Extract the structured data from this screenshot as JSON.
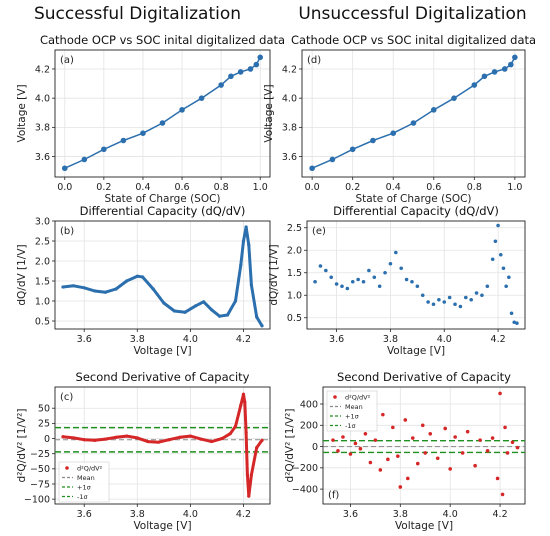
{
  "headings": {
    "left": "Successful Digitalization",
    "right": "Unsuccessful Digitalization"
  },
  "chart_data": [
    {
      "id": "a",
      "type": "scatter",
      "panel_label": "(a)",
      "title": "Cathode OCP vs SOC inital digitalized data",
      "xlabel": "State of Charge (SOC)",
      "ylabel": "Voltage [V]",
      "xlim": [
        -0.05,
        1.05
      ],
      "ylim": [
        3.46,
        4.33
      ],
      "xticks": [
        "0.0",
        "0.2",
        "0.4",
        "0.6",
        "0.8",
        "1.0"
      ],
      "xtick_values": [
        0,
        0.2,
        0.4,
        0.6,
        0.8,
        1.0
      ],
      "yticks": [
        "3.6",
        "3.8",
        "4.0",
        "4.2"
      ],
      "ytick_values": [
        3.6,
        3.8,
        4.0,
        4.2
      ],
      "grid": true,
      "color": "#2b6fae",
      "markers": true,
      "x": [
        0,
        0.1,
        0.2,
        0.3,
        0.4,
        0.5,
        0.6,
        0.7,
        0.8,
        0.85,
        0.9,
        0.95,
        0.98,
        1.0
      ],
      "y": [
        3.52,
        3.58,
        3.65,
        3.71,
        3.76,
        3.83,
        3.92,
        4.0,
        4.09,
        4.15,
        4.18,
        4.2,
        4.23,
        4.28
      ]
    },
    {
      "id": "d",
      "type": "scatter",
      "panel_label": "(d)",
      "title": "Cathode OCP vs SOC inital digitalized data",
      "xlabel": "State of Charge (SOC)",
      "ylabel": "Voltage [V]",
      "xlim": [
        -0.05,
        1.05
      ],
      "ylim": [
        3.46,
        4.33
      ],
      "xticks": [
        "0.0",
        "0.2",
        "0.4",
        "0.6",
        "0.8",
        "1.0"
      ],
      "xtick_values": [
        0,
        0.2,
        0.4,
        0.6,
        0.8,
        1.0
      ],
      "yticks": [
        "3.6",
        "3.8",
        "4.0",
        "4.2"
      ],
      "ytick_values": [
        3.6,
        3.8,
        4.0,
        4.2
      ],
      "grid": true,
      "color": "#2b6fae",
      "markers": true,
      "x": [
        0,
        0.1,
        0.2,
        0.3,
        0.4,
        0.5,
        0.6,
        0.7,
        0.8,
        0.85,
        0.9,
        0.95,
        0.98,
        1.0
      ],
      "y": [
        3.52,
        3.58,
        3.65,
        3.71,
        3.76,
        3.83,
        3.92,
        4.0,
        4.09,
        4.15,
        4.18,
        4.2,
        4.23,
        4.28
      ]
    },
    {
      "id": "b",
      "type": "line",
      "panel_label": "(b)",
      "title": "Differential Capacity (dQ/dV)",
      "xlabel": "Voltage [V]",
      "ylabel": "dQ/dV [1/V]",
      "xlim": [
        3.49,
        4.3
      ],
      "ylim": [
        0.3,
        3.0
      ],
      "xticks": [
        "3.6",
        "3.8",
        "4.0",
        "4.2"
      ],
      "xtick_values": [
        3.6,
        3.8,
        4.0,
        4.2
      ],
      "yticks": [
        "0.5",
        "1.0",
        "1.5",
        "2.0",
        "2.5",
        "3.0"
      ],
      "ytick_values": [
        0.5,
        1.0,
        1.5,
        2.0,
        2.5,
        3.0
      ],
      "grid": true,
      "color": "#2b6fae",
      "x": [
        3.52,
        3.56,
        3.6,
        3.64,
        3.68,
        3.72,
        3.76,
        3.8,
        3.82,
        3.86,
        3.9,
        3.94,
        3.98,
        4.02,
        4.05,
        4.08,
        4.11,
        4.14,
        4.17,
        4.19,
        4.2,
        4.21,
        4.22,
        4.23,
        4.25,
        4.27
      ],
      "y": [
        1.35,
        1.38,
        1.33,
        1.25,
        1.22,
        1.3,
        1.5,
        1.62,
        1.6,
        1.3,
        0.95,
        0.75,
        0.72,
        0.88,
        0.98,
        0.78,
        0.62,
        0.65,
        1.0,
        1.9,
        2.5,
        2.85,
        2.4,
        1.4,
        0.6,
        0.38
      ]
    },
    {
      "id": "e",
      "type": "scatter",
      "panel_label": "(e)",
      "title": "Differential Capacity (dQ/dV)",
      "xlabel": "Voltage [V]",
      "ylabel": "dQ/dV [1/V]",
      "xlim": [
        3.49,
        4.3
      ],
      "ylim": [
        0.25,
        2.65
      ],
      "xticks": [
        "3.6",
        "3.8",
        "4.0",
        "4.2"
      ],
      "xtick_values": [
        3.6,
        3.8,
        4.0,
        4.2
      ],
      "yticks": [
        "0.5",
        "1.0",
        "1.5",
        "2.0",
        "2.5"
      ],
      "ytick_values": [
        0.5,
        1.0,
        1.5,
        2.0,
        2.5
      ],
      "grid": true,
      "color": "#2b6fae",
      "x": [
        3.52,
        3.54,
        3.56,
        3.58,
        3.6,
        3.62,
        3.64,
        3.66,
        3.68,
        3.7,
        3.72,
        3.74,
        3.76,
        3.78,
        3.8,
        3.82,
        3.84,
        3.86,
        3.88,
        3.9,
        3.92,
        3.94,
        3.96,
        3.98,
        4.0,
        4.02,
        4.04,
        4.06,
        4.08,
        4.1,
        4.12,
        4.14,
        4.16,
        4.18,
        4.19,
        4.2,
        4.21,
        4.22,
        4.23,
        4.24,
        4.25,
        4.26,
        4.27
      ],
      "y": [
        1.3,
        1.65,
        1.55,
        1.4,
        1.25,
        1.2,
        1.15,
        1.3,
        1.35,
        1.3,
        1.55,
        1.4,
        1.2,
        1.5,
        1.7,
        1.95,
        1.6,
        1.35,
        1.3,
        1.2,
        1.0,
        0.85,
        0.8,
        0.9,
        0.85,
        0.95,
        0.8,
        0.75,
        0.95,
        0.9,
        1.05,
        1.0,
        1.2,
        1.8,
        2.2,
        2.55,
        1.9,
        1.6,
        1.2,
        1.4,
        0.6,
        0.4,
        0.38
      ]
    },
    {
      "id": "c",
      "type": "line",
      "panel_label": "(c)",
      "title": "Second Derivative of Capacity",
      "xlabel": "Voltage [V]",
      "ylabel": "d²Q/dV² [1/V²]",
      "xlim": [
        3.49,
        4.3
      ],
      "ylim": [
        -108,
        85
      ],
      "xticks": [
        "3.6",
        "3.8",
        "4.0",
        "4.2"
      ],
      "xtick_values": [
        3.6,
        3.8,
        4.0,
        4.2
      ],
      "yticks": [
        "−100",
        "−75",
        "−50",
        "−25",
        "0",
        "25",
        "50"
      ],
      "ytick_values": [
        -100,
        -75,
        -50,
        -25,
        0,
        25,
        50
      ],
      "grid": true,
      "color": "#d62728",
      "mean": -2,
      "plus_sigma": 18,
      "minus_sigma": -22,
      "legend": [
        "d²Q/dV²",
        "Mean",
        "+1σ",
        "-1σ"
      ],
      "legend_loc": "lower-left",
      "x": [
        3.52,
        3.56,
        3.6,
        3.64,
        3.68,
        3.72,
        3.76,
        3.8,
        3.84,
        3.88,
        3.92,
        3.96,
        4.0,
        4.04,
        4.08,
        4.12,
        4.15,
        4.17,
        4.19,
        4.2,
        4.205,
        4.21,
        4.215,
        4.22,
        4.23,
        4.25,
        4.27
      ],
      "y": [
        3,
        1,
        -2,
        -3,
        -1,
        2,
        4,
        1,
        -5,
        -6,
        -2,
        2,
        4,
        -1,
        -5,
        0,
        8,
        20,
        55,
        73,
        60,
        10,
        -60,
        -95,
        -60,
        -15,
        -3
      ]
    },
    {
      "id": "f",
      "type": "scatter",
      "panel_label": "(f)",
      "title": "Second Derivative of Capacity",
      "xlabel": "Voltage [V]",
      "ylabel": "d²Q/dV² [1/V²]",
      "xlim": [
        3.49,
        4.3
      ],
      "ylim": [
        -540,
        560
      ],
      "xticks": [
        "3.6",
        "3.8",
        "4.0",
        "4.2"
      ],
      "xtick_values": [
        3.6,
        3.8,
        4.0,
        4.2
      ],
      "yticks": [
        "−400",
        "−200",
        "0",
        "200",
        "400"
      ],
      "ytick_values": [
        -400,
        -200,
        0,
        200,
        400
      ],
      "grid": true,
      "color": "#d62728",
      "mean": 0,
      "plus_sigma": 55,
      "minus_sigma": -55,
      "legend": [
        "d²Q/dV²",
        "Mean",
        "+1σ",
        "-1σ"
      ],
      "legend_loc": "upper-left",
      "x": [
        3.53,
        3.55,
        3.57,
        3.6,
        3.62,
        3.64,
        3.66,
        3.68,
        3.7,
        3.72,
        3.73,
        3.75,
        3.77,
        3.79,
        3.8,
        3.82,
        3.83,
        3.85,
        3.87,
        3.89,
        3.9,
        3.92,
        3.95,
        3.98,
        4.0,
        4.02,
        4.05,
        4.07,
        4.1,
        4.12,
        4.15,
        4.17,
        4.19,
        4.2,
        4.21,
        4.22,
        4.23,
        4.25,
        4.27
      ],
      "y": [
        60,
        -40,
        90,
        -70,
        30,
        -20,
        120,
        -150,
        60,
        -220,
        300,
        -120,
        180,
        -90,
        -380,
        250,
        -300,
        80,
        -160,
        200,
        -60,
        120,
        -110,
        170,
        -210,
        90,
        -60,
        140,
        -180,
        60,
        -40,
        80,
        -300,
        500,
        -450,
        180,
        -60,
        40,
        -10
      ]
    }
  ]
}
